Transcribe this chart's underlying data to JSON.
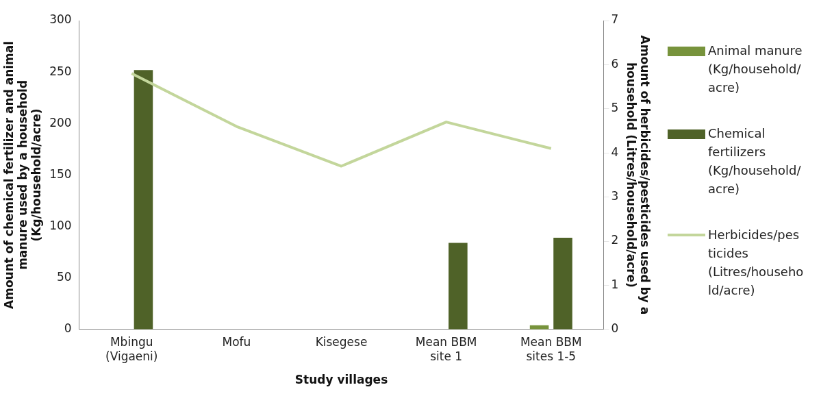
{
  "chart_data": {
    "type": "bar",
    "categories": [
      "Mbingu (Vigaeni)",
      "Mofu",
      "Kisegese",
      "Mean BBM site 1",
      "Mean BBM sites 1-5"
    ],
    "xlabel": "Study villages",
    "ylabel": "Amount of chemical fertilizer and animal manure used by a household (Kg/household/acre)",
    "y2label": "Amount of herbicides/pesticides used by a household (Litres/household/acre)",
    "series": [
      {
        "name": "Animal manure (Kg/household/acre)",
        "color": "#77933c",
        "values": [
          0,
          0,
          0,
          0,
          4
        ]
      },
      {
        "name": "Chemical fertilizers (Kg/household/acre)",
        "color": "#4f6228",
        "values": [
          252,
          0,
          0,
          84,
          89
        ]
      },
      {
        "name": "Herbicides/pesticides (Litres/household/acre)",
        "type": "line",
        "axis": "y2",
        "color": "#c3d69b",
        "values": [
          5.8,
          4.6,
          3.7,
          4.7,
          4.1
        ]
      }
    ],
    "ylim": [
      0,
      300
    ],
    "yticks": [
      0,
      50,
      100,
      150,
      200,
      250,
      300
    ],
    "y2lim": [
      0,
      7
    ],
    "y2ticks": [
      0,
      1,
      2,
      3,
      4,
      5,
      6,
      7
    ],
    "grid": false,
    "legend": "right"
  }
}
